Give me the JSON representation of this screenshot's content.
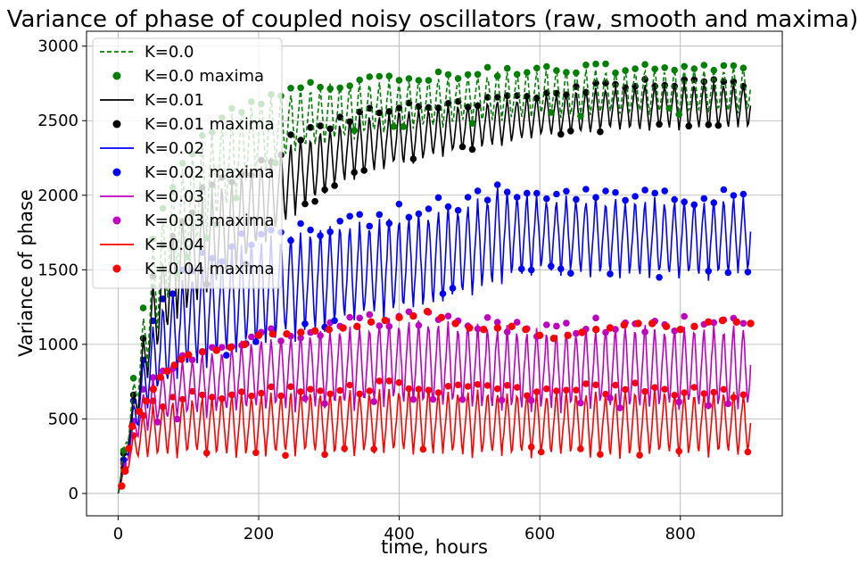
{
  "chart_data": {
    "type": "line",
    "title": "Variance of phase of coupled noisy oscillators (raw, smooth and maxima)",
    "xlabel": "time, hours",
    "ylabel": "Variance of phase",
    "xlim": [
      -45,
      945
    ],
    "ylim": [
      -150,
      3100
    ],
    "xticks": [
      0,
      200,
      400,
      600,
      800
    ],
    "yticks": [
      0,
      500,
      1000,
      1500,
      2000,
      2500,
      3000
    ],
    "grid": true,
    "legend_position": "top-left",
    "series": [
      {
        "name": "K=0.0",
        "color": "#008000",
        "dash": true,
        "envelope_max": [
          [
            0,
            0
          ],
          [
            10,
            380
          ],
          [
            20,
            700
          ],
          [
            30,
            1000
          ],
          [
            50,
            1700
          ],
          [
            80,
            2150
          ],
          [
            120,
            2400
          ],
          [
            160,
            2550
          ],
          [
            200,
            2650
          ],
          [
            260,
            2720
          ],
          [
            330,
            2760
          ],
          [
            400,
            2780
          ],
          [
            500,
            2820
          ],
          [
            600,
            2850
          ],
          [
            700,
            2850
          ],
          [
            800,
            2850
          ],
          [
            900,
            2870
          ]
        ],
        "envelope_min": [
          [
            0,
            0
          ],
          [
            10,
            250
          ],
          [
            20,
            450
          ],
          [
            30,
            650
          ],
          [
            50,
            1000
          ],
          [
            80,
            1400
          ],
          [
            120,
            1700
          ],
          [
            160,
            1950
          ],
          [
            200,
            2150
          ],
          [
            260,
            2300
          ],
          [
            330,
            2380
          ],
          [
            400,
            2430
          ],
          [
            500,
            2480
          ],
          [
            600,
            2520
          ],
          [
            700,
            2540
          ],
          [
            800,
            2540
          ],
          [
            900,
            2560
          ]
        ],
        "period": 14
      },
      {
        "name": "K=0.01",
        "color": "#000000",
        "dash": false,
        "envelope_max": [
          [
            0,
            0
          ],
          [
            10,
            340
          ],
          [
            20,
            620
          ],
          [
            30,
            880
          ],
          [
            50,
            1450
          ],
          [
            80,
            1800
          ],
          [
            120,
            2000
          ],
          [
            160,
            2120
          ],
          [
            200,
            2220
          ],
          [
            260,
            2400
          ],
          [
            330,
            2520
          ],
          [
            400,
            2580
          ],
          [
            500,
            2620
          ],
          [
            600,
            2680
          ],
          [
            700,
            2740
          ],
          [
            800,
            2760
          ],
          [
            900,
            2760
          ]
        ],
        "envelope_min": [
          [
            0,
            0
          ],
          [
            10,
            230
          ],
          [
            20,
            420
          ],
          [
            30,
            560
          ],
          [
            50,
            900
          ],
          [
            80,
            1150
          ],
          [
            120,
            1300
          ],
          [
            160,
            1450
          ],
          [
            200,
            1650
          ],
          [
            260,
            1900
          ],
          [
            330,
            2100
          ],
          [
            400,
            2200
          ],
          [
            500,
            2300
          ],
          [
            600,
            2380
          ],
          [
            700,
            2430
          ],
          [
            800,
            2440
          ],
          [
            900,
            2450
          ]
        ],
        "period": 14
      },
      {
        "name": "K=0.02",
        "color": "#0000ff",
        "dash": false,
        "envelope_max": [
          [
            0,
            0
          ],
          [
            10,
            300
          ],
          [
            20,
            560
          ],
          [
            30,
            800
          ],
          [
            50,
            1150
          ],
          [
            80,
            1400
          ],
          [
            120,
            1550
          ],
          [
            160,
            1650
          ],
          [
            200,
            1720
          ],
          [
            260,
            1780
          ],
          [
            330,
            1830
          ],
          [
            400,
            1880
          ],
          [
            500,
            1960
          ],
          [
            540,
            2060
          ],
          [
            600,
            2000
          ],
          [
            700,
            1990
          ],
          [
            800,
            1990
          ],
          [
            900,
            1990
          ]
        ],
        "envelope_min": [
          [
            0,
            0
          ],
          [
            10,
            200
          ],
          [
            20,
            330
          ],
          [
            30,
            460
          ],
          [
            50,
            640
          ],
          [
            80,
            780
          ],
          [
            120,
            860
          ],
          [
            160,
            920
          ],
          [
            200,
            980
          ],
          [
            260,
            1050
          ],
          [
            330,
            1140
          ],
          [
            400,
            1200
          ],
          [
            500,
            1320
          ],
          [
            560,
            1440
          ],
          [
            600,
            1480
          ],
          [
            700,
            1460
          ],
          [
            800,
            1420
          ],
          [
            900,
            1480
          ]
        ],
        "period": 14
      },
      {
        "name": "K=0.03",
        "color": "#c000c0",
        "dash": false,
        "envelope_max": [
          [
            0,
            0
          ],
          [
            10,
            260
          ],
          [
            20,
            470
          ],
          [
            30,
            640
          ],
          [
            50,
            780
          ],
          [
            80,
            880
          ],
          [
            120,
            950
          ],
          [
            160,
            1000
          ],
          [
            200,
            1050
          ],
          [
            260,
            1090
          ],
          [
            330,
            1130
          ],
          [
            400,
            1180
          ],
          [
            500,
            1150
          ],
          [
            600,
            1100
          ],
          [
            700,
            1130
          ],
          [
            800,
            1140
          ],
          [
            900,
            1130
          ]
        ],
        "envelope_min": [
          [
            0,
            0
          ],
          [
            10,
            170
          ],
          [
            20,
            290
          ],
          [
            30,
            390
          ],
          [
            50,
            460
          ],
          [
            80,
            500
          ],
          [
            120,
            520
          ],
          [
            160,
            540
          ],
          [
            200,
            550
          ],
          [
            260,
            560
          ],
          [
            330,
            570
          ],
          [
            400,
            600
          ],
          [
            500,
            560
          ],
          [
            600,
            560
          ],
          [
            700,
            560
          ],
          [
            800,
            560
          ],
          [
            900,
            560
          ]
        ],
        "period": 14
      },
      {
        "name": "K=0.04",
        "color": "#ff0000",
        "dash": false,
        "envelope_max": [
          [
            0,
            0
          ],
          [
            10,
            220
          ],
          [
            20,
            380
          ],
          [
            30,
            520
          ],
          [
            50,
            600
          ],
          [
            80,
            640
          ],
          [
            120,
            660
          ],
          [
            160,
            670
          ],
          [
            200,
            680
          ],
          [
            260,
            690
          ],
          [
            330,
            700
          ],
          [
            400,
            720
          ],
          [
            500,
            700
          ],
          [
            600,
            690
          ],
          [
            700,
            700
          ],
          [
            800,
            700
          ],
          [
            900,
            680
          ]
        ],
        "envelope_min": [
          [
            0,
            0
          ],
          [
            10,
            130
          ],
          [
            20,
            200
          ],
          [
            30,
            240
          ],
          [
            50,
            250
          ],
          [
            80,
            250
          ],
          [
            120,
            250
          ],
          [
            160,
            250
          ],
          [
            200,
            250
          ],
          [
            260,
            250
          ],
          [
            330,
            250
          ],
          [
            400,
            260
          ],
          [
            500,
            250
          ],
          [
            600,
            250
          ],
          [
            700,
            250
          ],
          [
            800,
            250
          ],
          [
            900,
            250
          ]
        ],
        "period": 14
      },
      {
        "name": "K=0.04 maxima",
        "color": "#ff0000",
        "maxima": [
          [
            5,
            50
          ],
          [
            10,
            150
          ],
          [
            15,
            300
          ],
          [
            20,
            450
          ],
          [
            30,
            550
          ],
          [
            40,
            620
          ],
          [
            50,
            700
          ],
          [
            60,
            780
          ],
          [
            70,
            820
          ],
          [
            80,
            860
          ],
          [
            90,
            900
          ],
          [
            100,
            930
          ],
          [
            120,
            950
          ],
          [
            140,
            960
          ],
          [
            160,
            980
          ],
          [
            180,
            1000
          ],
          [
            200,
            1060
          ],
          [
            220,
            1070
          ],
          [
            240,
            1070
          ],
          [
            260,
            1080
          ],
          [
            280,
            1090
          ],
          [
            300,
            1100
          ],
          [
            320,
            1110
          ],
          [
            340,
            1120
          ],
          [
            360,
            1150
          ],
          [
            380,
            1160
          ],
          [
            400,
            1180
          ],
          [
            420,
            1190
          ],
          [
            440,
            1220
          ],
          [
            460,
            1180
          ],
          [
            480,
            1140
          ],
          [
            500,
            1110
          ],
          [
            520,
            1100
          ],
          [
            540,
            1110
          ],
          [
            560,
            1120
          ],
          [
            580,
            1100
          ],
          [
            600,
            1060
          ],
          [
            620,
            1040
          ],
          [
            640,
            1060
          ],
          [
            660,
            1080
          ],
          [
            680,
            1100
          ],
          [
            700,
            1110
          ],
          [
            720,
            1130
          ],
          [
            740,
            1140
          ],
          [
            760,
            1140
          ],
          [
            780,
            1120
          ],
          [
            800,
            1100
          ],
          [
            820,
            1120
          ],
          [
            840,
            1150
          ],
          [
            860,
            1160
          ],
          [
            880,
            1150
          ],
          [
            900,
            1140
          ]
        ]
      }
    ]
  }
}
